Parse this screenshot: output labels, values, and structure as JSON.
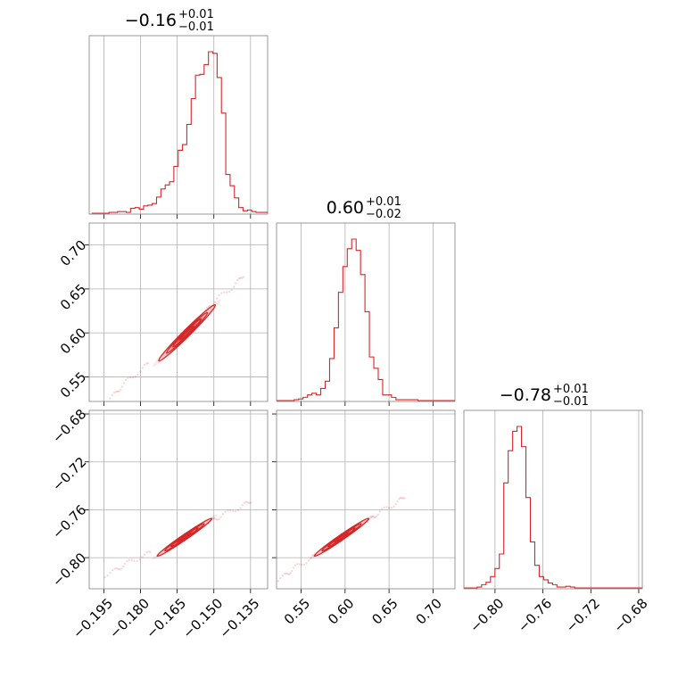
{
  "chart_data": {
    "type": "corner",
    "color": "#d62728",
    "grid": true,
    "params": [
      {
        "title": {
          "value": "−0.16",
          "plus": "+0.01",
          "minus": "−0.01"
        },
        "range": [
          -0.201,
          -0.128
        ],
        "ticks": [
          -0.195,
          -0.18,
          -0.165,
          -0.15,
          -0.135
        ],
        "tick_labels": [
          "−0.195",
          "−0.180",
          "−0.165",
          "−0.150",
          "−0.135"
        ],
        "hist_start": -0.2,
        "hist_bin_width": 0.00177,
        "hist_counts": [
          0,
          0,
          0,
          0,
          0.005,
          0.005,
          0.01,
          0.01,
          0.005,
          0.03,
          0.035,
          0.025,
          0.045,
          0.05,
          0.06,
          0.1,
          0.15,
          0.175,
          0.195,
          0.29,
          0.39,
          0.425,
          0.55,
          0.71,
          0.855,
          0.86,
          0.92,
          1.0,
          0.99,
          0.84,
          0.62,
          0.24,
          0.17,
          0.095,
          0.035,
          0.015,
          0.02,
          0.01,
          0.005,
          0.005,
          0.005,
          0.005,
          0.005,
          0,
          0,
          0,
          0,
          0,
          0,
          0,
          0,
          0,
          0,
          0,
          0
        ]
      },
      {
        "title": {
          "value": "0.60",
          "plus": "+0.01",
          "minus": "−0.02"
        },
        "range": [
          0.522,
          0.725
        ],
        "ticks": [
          0.55,
          0.6,
          0.65,
          0.7
        ],
        "tick_labels": [
          "0.55",
          "0.60",
          "0.65",
          "0.70"
        ],
        "hist_start": 0.522,
        "hist_bin_width": 0.00503,
        "hist_counts": [
          0,
          0,
          0,
          0,
          0.005,
          0.01,
          0.02,
          0.035,
          0.045,
          0.035,
          0.075,
          0.12,
          0.26,
          0.45,
          0.67,
          0.83,
          0.94,
          1.0,
          0.93,
          0.78,
          0.55,
          0.27,
          0.2,
          0.13,
          0.035,
          0.035,
          0.02,
          0.005,
          0.005,
          0.005,
          0.005,
          0.005,
          0,
          0,
          0,
          0,
          0,
          0,
          0,
          0,
          0
        ]
      },
      {
        "title": {
          "value": "−0.78",
          "plus": "+0.01",
          "minus": "−0.01"
        },
        "range": [
          -0.826,
          -0.677
        ],
        "ticks": [
          -0.8,
          -0.76,
          -0.72,
          -0.68
        ],
        "tick_labels": [
          "−0.80",
          "−0.76",
          "−0.72",
          "−0.68"
        ],
        "hist_start": -0.826,
        "hist_bin_width": 0.0037,
        "hist_counts": [
          0,
          0,
          0,
          0.005,
          0.02,
          0.035,
          0.07,
          0.12,
          0.21,
          0.65,
          0.85,
          0.97,
          1.0,
          0.875,
          0.56,
          0.285,
          0.14,
          0.07,
          0.05,
          0.03,
          0.02,
          0.005,
          0.005,
          0.01,
          0.005,
          0,
          0,
          0,
          0,
          0,
          0,
          0,
          0,
          0,
          0,
          0,
          0,
          0,
          0,
          0
        ]
      }
    ],
    "pairs": [
      {
        "row": 1,
        "col": 0,
        "center": [
          -0.161,
          0.6
        ],
        "sigma": [
          0.0058,
          0.016
        ],
        "rho": 0.985,
        "outlier_line": [
          [
            -0.195,
            0.52
          ],
          [
            -0.137,
            0.667
          ]
        ]
      },
      {
        "row": 2,
        "col": 0,
        "center": [
          -0.162,
          -0.783
        ],
        "sigma": [
          0.0056,
          0.0079
        ],
        "rho": 0.985,
        "outlier_line": [
          [
            -0.195,
            -0.815
          ],
          [
            -0.134,
            -0.752
          ]
        ]
      },
      {
        "row": 2,
        "col": 1,
        "center": [
          0.596,
          -0.783
        ],
        "sigma": [
          0.0155,
          0.0079
        ],
        "rho": 0.985,
        "outlier_line": [
          [
            0.52,
            -0.82
          ],
          [
            0.67,
            -0.748
          ]
        ]
      }
    ]
  }
}
